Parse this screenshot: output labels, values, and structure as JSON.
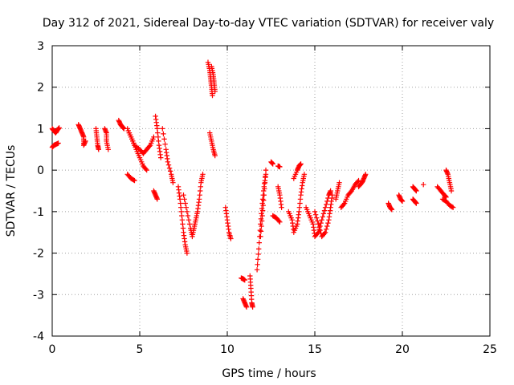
{
  "chart_data": {
    "type": "scatter",
    "title": "Day 312 of 2021, Sidereal Day-to-day VTEC variation (SDTVAR) for receiver valy",
    "xlabel": "GPS time / hours",
    "ylabel": "SDTVAR / TECUs",
    "xlim": [
      0,
      25
    ],
    "ylim": [
      -4,
      3
    ],
    "xticks": [
      0,
      5,
      10,
      15,
      20,
      25
    ],
    "yticks": [
      -4,
      -3,
      -2,
      -1,
      0,
      1,
      2,
      3
    ],
    "grid": true,
    "marker": "+",
    "color": "#ff0000",
    "series": [
      {
        "name": "SDTVAR",
        "segments": [
          [
            [
              0.0,
              0.55
            ],
            [
              0.1,
              0.6
            ],
            [
              0.2,
              0.62
            ],
            [
              0.35,
              0.65
            ]
          ],
          [
            [
              0.0,
              1.0
            ],
            [
              0.1,
              0.95
            ],
            [
              0.2,
              0.9
            ],
            [
              0.3,
              0.97
            ],
            [
              0.4,
              1.02
            ]
          ],
          [
            [
              1.5,
              1.1
            ],
            [
              1.6,
              1.0
            ],
            [
              1.7,
              0.9
            ],
            [
              1.8,
              0.8
            ],
            [
              1.8,
              0.6
            ],
            [
              1.9,
              0.7
            ]
          ],
          [
            [
              2.5,
              1.0
            ],
            [
              2.55,
              0.8
            ],
            [
              2.6,
              0.6
            ],
            [
              2.65,
              0.5
            ]
          ],
          [
            [
              3.0,
              1.0
            ],
            [
              3.1,
              0.9
            ],
            [
              3.1,
              0.7
            ],
            [
              3.2,
              0.5
            ]
          ],
          [
            [
              3.8,
              1.2
            ],
            [
              3.9,
              1.1
            ],
            [
              4.0,
              1.05
            ],
            [
              4.1,
              1.0
            ]
          ],
          [
            [
              4.3,
              1.0
            ],
            [
              4.5,
              0.8
            ],
            [
              4.7,
              0.6
            ],
            [
              5.0,
              0.5
            ],
            [
              5.2,
              0.4
            ],
            [
              5.4,
              0.5
            ],
            [
              5.6,
              0.6
            ],
            [
              5.8,
              0.8
            ]
          ],
          [
            [
              4.4,
              0.9
            ],
            [
              4.6,
              0.7
            ],
            [
              4.8,
              0.5
            ],
            [
              5.0,
              0.3
            ],
            [
              5.2,
              0.1
            ],
            [
              5.4,
              0.0
            ]
          ],
          [
            [
              4.3,
              -0.1
            ],
            [
              4.5,
              -0.2
            ],
            [
              4.7,
              -0.25
            ]
          ],
          [
            [
              5.9,
              1.3
            ],
            [
              6.0,
              1.0
            ],
            [
              6.1,
              0.6
            ],
            [
              6.2,
              0.3
            ]
          ],
          [
            [
              5.8,
              -0.5
            ],
            [
              5.9,
              -0.6
            ],
            [
              6.0,
              -0.7
            ]
          ],
          [
            [
              6.3,
              1.0
            ],
            [
              6.5,
              0.5
            ],
            [
              6.6,
              0.2
            ],
            [
              6.8,
              -0.1
            ],
            [
              6.9,
              -0.3
            ]
          ],
          [
            [
              7.2,
              -0.4
            ],
            [
              7.3,
              -0.7
            ],
            [
              7.4,
              -1.1
            ],
            [
              7.5,
              -1.5
            ],
            [
              7.6,
              -1.8
            ],
            [
              7.7,
              -2.0
            ]
          ],
          [
            [
              7.5,
              -0.6
            ],
            [
              7.7,
              -1.0
            ],
            [
              7.9,
              -1.4
            ],
            [
              8.0,
              -1.6
            ],
            [
              8.1,
              -1.4
            ],
            [
              8.2,
              -1.2
            ],
            [
              8.3,
              -1.0
            ],
            [
              8.4,
              -0.7
            ],
            [
              8.5,
              -0.3
            ],
            [
              8.6,
              -0.1
            ]
          ],
          [
            [
              8.9,
              2.6
            ],
            [
              9.0,
              2.4
            ],
            [
              9.05,
              2.2
            ],
            [
              9.1,
              2.0
            ],
            [
              9.15,
              1.8
            ]
          ],
          [
            [
              9.1,
              2.5
            ],
            [
              9.2,
              2.3
            ],
            [
              9.25,
              2.1
            ],
            [
              9.3,
              1.9
            ]
          ],
          [
            [
              9.0,
              0.9
            ],
            [
              9.1,
              0.7
            ],
            [
              9.2,
              0.5
            ],
            [
              9.3,
              0.35
            ]
          ],
          [
            [
              9.9,
              -0.9
            ],
            [
              10.0,
              -1.2
            ],
            [
              10.1,
              -1.5
            ],
            [
              10.2,
              -1.65
            ]
          ],
          [
            [
              10.8,
              -2.6
            ],
            [
              10.9,
              -2.62
            ],
            [
              11.0,
              -2.65
            ]
          ],
          [
            [
              10.9,
              -3.1
            ],
            [
              11.0,
              -3.2
            ],
            [
              11.1,
              -3.3
            ]
          ],
          [
            [
              11.3,
              -2.55
            ],
            [
              11.35,
              -2.85
            ],
            [
              11.4,
              -3.2
            ],
            [
              11.45,
              -3.3
            ]
          ],
          [
            [
              11.7,
              -2.4
            ],
            [
              11.8,
              -1.9
            ],
            [
              11.9,
              -1.3
            ],
            [
              12.0,
              -0.8
            ],
            [
              12.1,
              -0.4
            ],
            [
              12.2,
              -0.1
            ]
          ],
          [
            [
              11.9,
              -1.6
            ],
            [
              12.0,
              -1.1
            ],
            [
              12.1,
              -0.6
            ],
            [
              12.2,
              0.0
            ]
          ],
          [
            [
              12.5,
              0.2
            ],
            [
              12.6,
              0.15
            ]
          ],
          [
            [
              12.6,
              -1.1
            ],
            [
              12.8,
              -1.15
            ],
            [
              13.0,
              -1.25
            ]
          ],
          [
            [
              12.9,
              0.1
            ],
            [
              13.0,
              0.08
            ]
          ],
          [
            [
              12.9,
              -0.4
            ],
            [
              13.0,
              -0.6
            ],
            [
              13.1,
              -0.9
            ]
          ],
          [
            [
              13.5,
              -1.0
            ],
            [
              13.7,
              -1.2
            ],
            [
              13.8,
              -1.5
            ],
            [
              14.0,
              -1.3
            ],
            [
              14.1,
              -1.0
            ],
            [
              14.2,
              -0.6
            ],
            [
              14.3,
              -0.3
            ],
            [
              14.4,
              -0.1
            ]
          ],
          [
            [
              13.8,
              -0.2
            ],
            [
              14.0,
              0.0
            ],
            [
              14.1,
              0.1
            ],
            [
              14.2,
              0.15
            ]
          ],
          [
            [
              14.5,
              -0.9
            ],
            [
              14.7,
              -1.1
            ],
            [
              14.9,
              -1.3
            ],
            [
              15.0,
              -1.6
            ],
            [
              15.2,
              -1.5
            ],
            [
              15.4,
              -1.2
            ],
            [
              15.6,
              -0.9
            ],
            [
              15.8,
              -0.6
            ],
            [
              15.9,
              -0.5
            ]
          ],
          [
            [
              15.0,
              -1.0
            ],
            [
              15.2,
              -1.3
            ],
            [
              15.4,
              -1.6
            ],
            [
              15.6,
              -1.5
            ],
            [
              15.8,
              -1.2
            ],
            [
              15.9,
              -0.9
            ],
            [
              16.0,
              -0.6
            ]
          ],
          [
            [
              16.2,
              -0.7
            ],
            [
              16.3,
              -0.5
            ],
            [
              16.4,
              -0.3
            ]
          ],
          [
            [
              16.5,
              -0.9
            ],
            [
              16.7,
              -0.8
            ],
            [
              16.9,
              -0.6
            ],
            [
              17.1,
              -0.5
            ],
            [
              17.3,
              -0.35
            ],
            [
              17.5,
              -0.25
            ]
          ],
          [
            [
              17.5,
              -0.4
            ],
            [
              17.7,
              -0.3
            ],
            [
              17.8,
              -0.2
            ],
            [
              17.9,
              -0.1
            ]
          ],
          [
            [
              19.2,
              -0.8
            ],
            [
              19.3,
              -0.9
            ],
            [
              19.4,
              -0.95
            ]
          ],
          [
            [
              19.8,
              -0.6
            ],
            [
              19.9,
              -0.7
            ],
            [
              20.0,
              -0.75
            ]
          ],
          [
            [
              20.6,
              -0.4
            ],
            [
              20.7,
              -0.45
            ],
            [
              20.8,
              -0.5
            ]
          ],
          [
            [
              20.6,
              -0.7
            ],
            [
              20.7,
              -0.75
            ],
            [
              20.8,
              -0.8
            ]
          ],
          [
            [
              21.2,
              -0.35
            ]
          ],
          [
            [
              22.0,
              -0.4
            ],
            [
              22.2,
              -0.5
            ],
            [
              22.4,
              -0.6
            ],
            [
              22.5,
              -0.65
            ]
          ],
          [
            [
              22.5,
              0.0
            ],
            [
              22.6,
              -0.1
            ],
            [
              22.7,
              -0.3
            ],
            [
              22.8,
              -0.5
            ]
          ],
          [
            [
              22.3,
              -0.7
            ],
            [
              22.5,
              -0.75
            ],
            [
              22.7,
              -0.85
            ],
            [
              22.9,
              -0.9
            ]
          ]
        ]
      }
    ]
  }
}
